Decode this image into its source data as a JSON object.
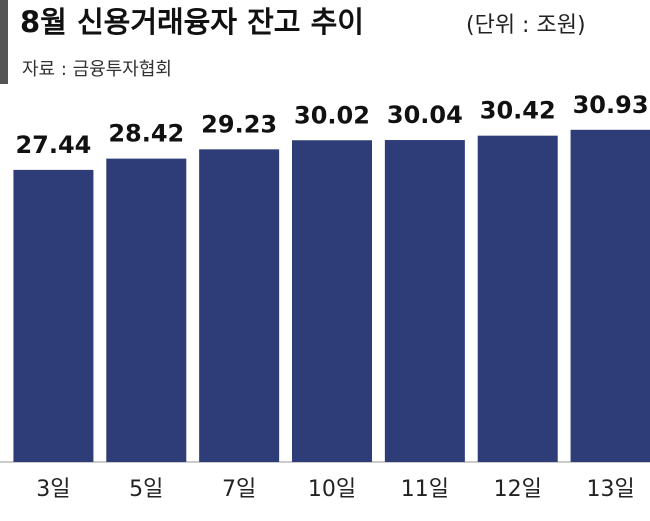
{
  "chart_data": {
    "type": "bar",
    "title": "8월 신용거래융자 잔고 추이",
    "subtitle": "(단위 : 조원)",
    "source": "자료 : 금융투자협회",
    "categories": [
      "3일",
      "5일",
      "7일",
      "10일",
      "11일",
      "12일",
      "13일"
    ],
    "values": [
      27.44,
      28.42,
      29.23,
      30.02,
      30.04,
      30.42,
      30.93
    ],
    "value_labels": [
      "27.44",
      "28.42",
      "29.23",
      "30.02",
      "30.04",
      "30.42",
      "30.93"
    ],
    "color": "#2e3d78",
    "ylim": [
      2,
      31
    ]
  }
}
